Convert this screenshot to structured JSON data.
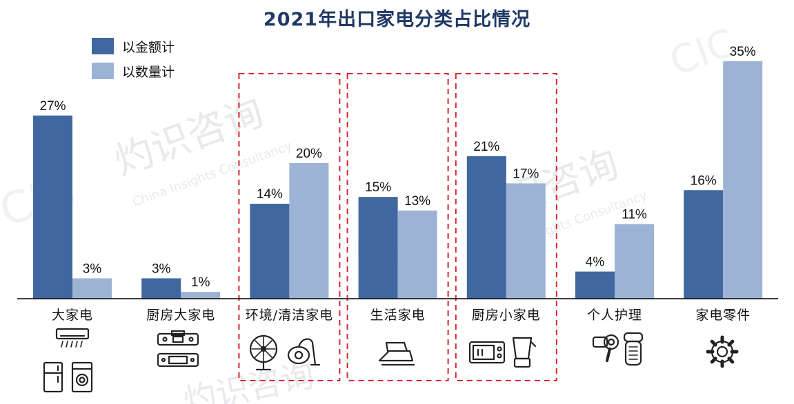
{
  "chart_data": {
    "type": "bar",
    "title": "2021年出口家电分类占比情况",
    "categories": [
      "大家电",
      "厨房大家电",
      "环境/清洁家电",
      "生活家电",
      "厨房小家电",
      "个人护理",
      "家电零件"
    ],
    "series": [
      {
        "name": "以金额计",
        "values": [
          27,
          3,
          14,
          15,
          21,
          4,
          16
        ],
        "labels": [
          "27%",
          "3%",
          "14%",
          "15%",
          "21%",
          "4%",
          "16%"
        ],
        "color": "#4167a0"
      },
      {
        "name": "以数量计",
        "values": [
          3,
          1,
          20,
          13,
          17,
          11,
          35
        ],
        "labels": [
          "3%",
          "1%",
          "20%",
          "13%",
          "17%",
          "11%",
          "35%"
        ],
        "color": "#9db3d6"
      }
    ],
    "ylim": [
      0,
      35
    ],
    "grid": false,
    "legend": "top-left",
    "highlighted_categories": [
      "环境/清洁家电",
      "生活家电",
      "厨房小家电"
    ],
    "highlight_color": "#d9262c"
  },
  "watermark": {
    "brand_cn": "灼识咨询",
    "brand_en": "China Insights Consultancy",
    "logo": "CIC"
  },
  "icons": [
    [
      "air-conditioner-icon",
      "refrigerator-icon",
      "washing-machine-icon"
    ],
    [
      "range-hood-icon",
      "dishwasher-icon"
    ],
    [
      "fan-icon",
      "vacuum-cleaner-icon"
    ],
    [
      "iron-icon"
    ],
    [
      "microwave-icon",
      "blender-icon"
    ],
    [
      "hair-dryer-icon",
      "shaver-icon"
    ],
    [
      "gear-icon"
    ]
  ]
}
